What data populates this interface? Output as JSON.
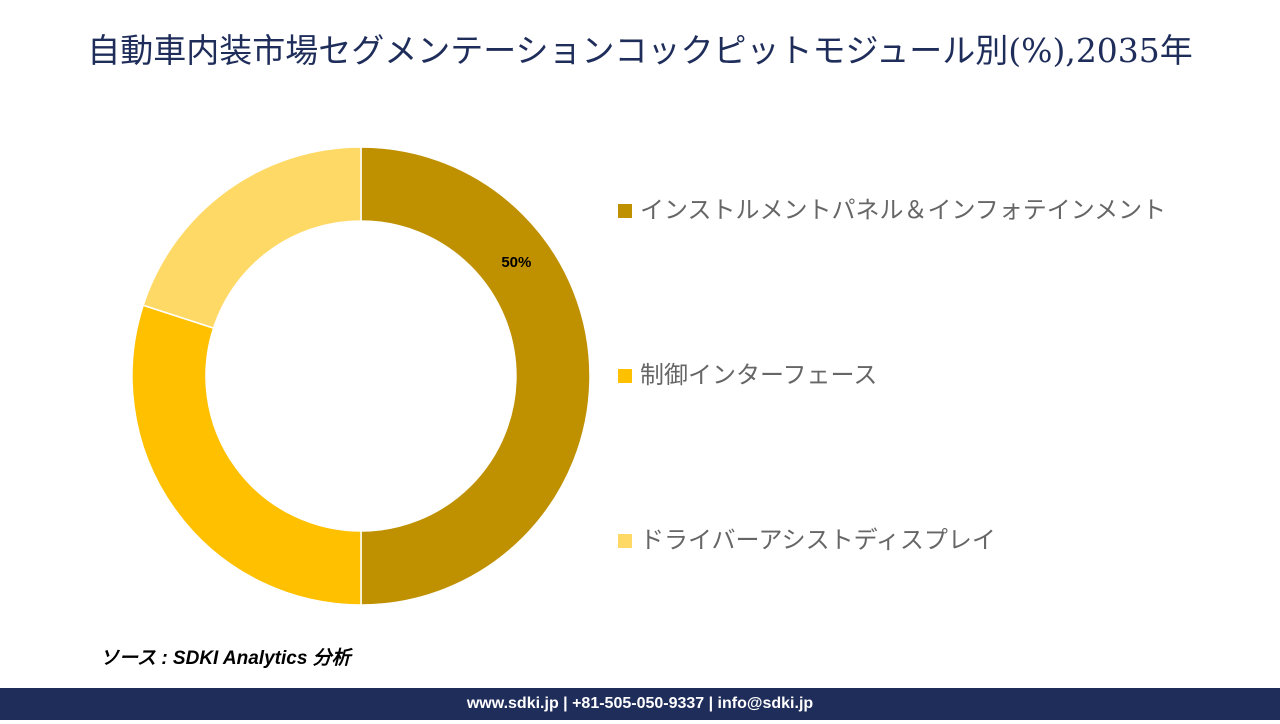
{
  "chart_data": {
    "type": "donut",
    "title": "自動車内装市場セグメンテーションコックピットモジュール別(%),2035年",
    "categories": [
      "インストルメントパネル＆インフォテインメント",
      "制御インターフェース",
      "ドライバーアシストディスプレイ"
    ],
    "values": [
      50,
      30,
      20
    ],
    "value_labels": [
      "50%",
      null,
      null
    ],
    "colors": [
      "#bf9000",
      "#ffc000",
      "#ffd966"
    ],
    "legend": "right"
  },
  "source": "ソース : SDKI Analytics 分析",
  "footer": "www.sdki.jp | +81-505-050-9337 | info@sdki.jp"
}
